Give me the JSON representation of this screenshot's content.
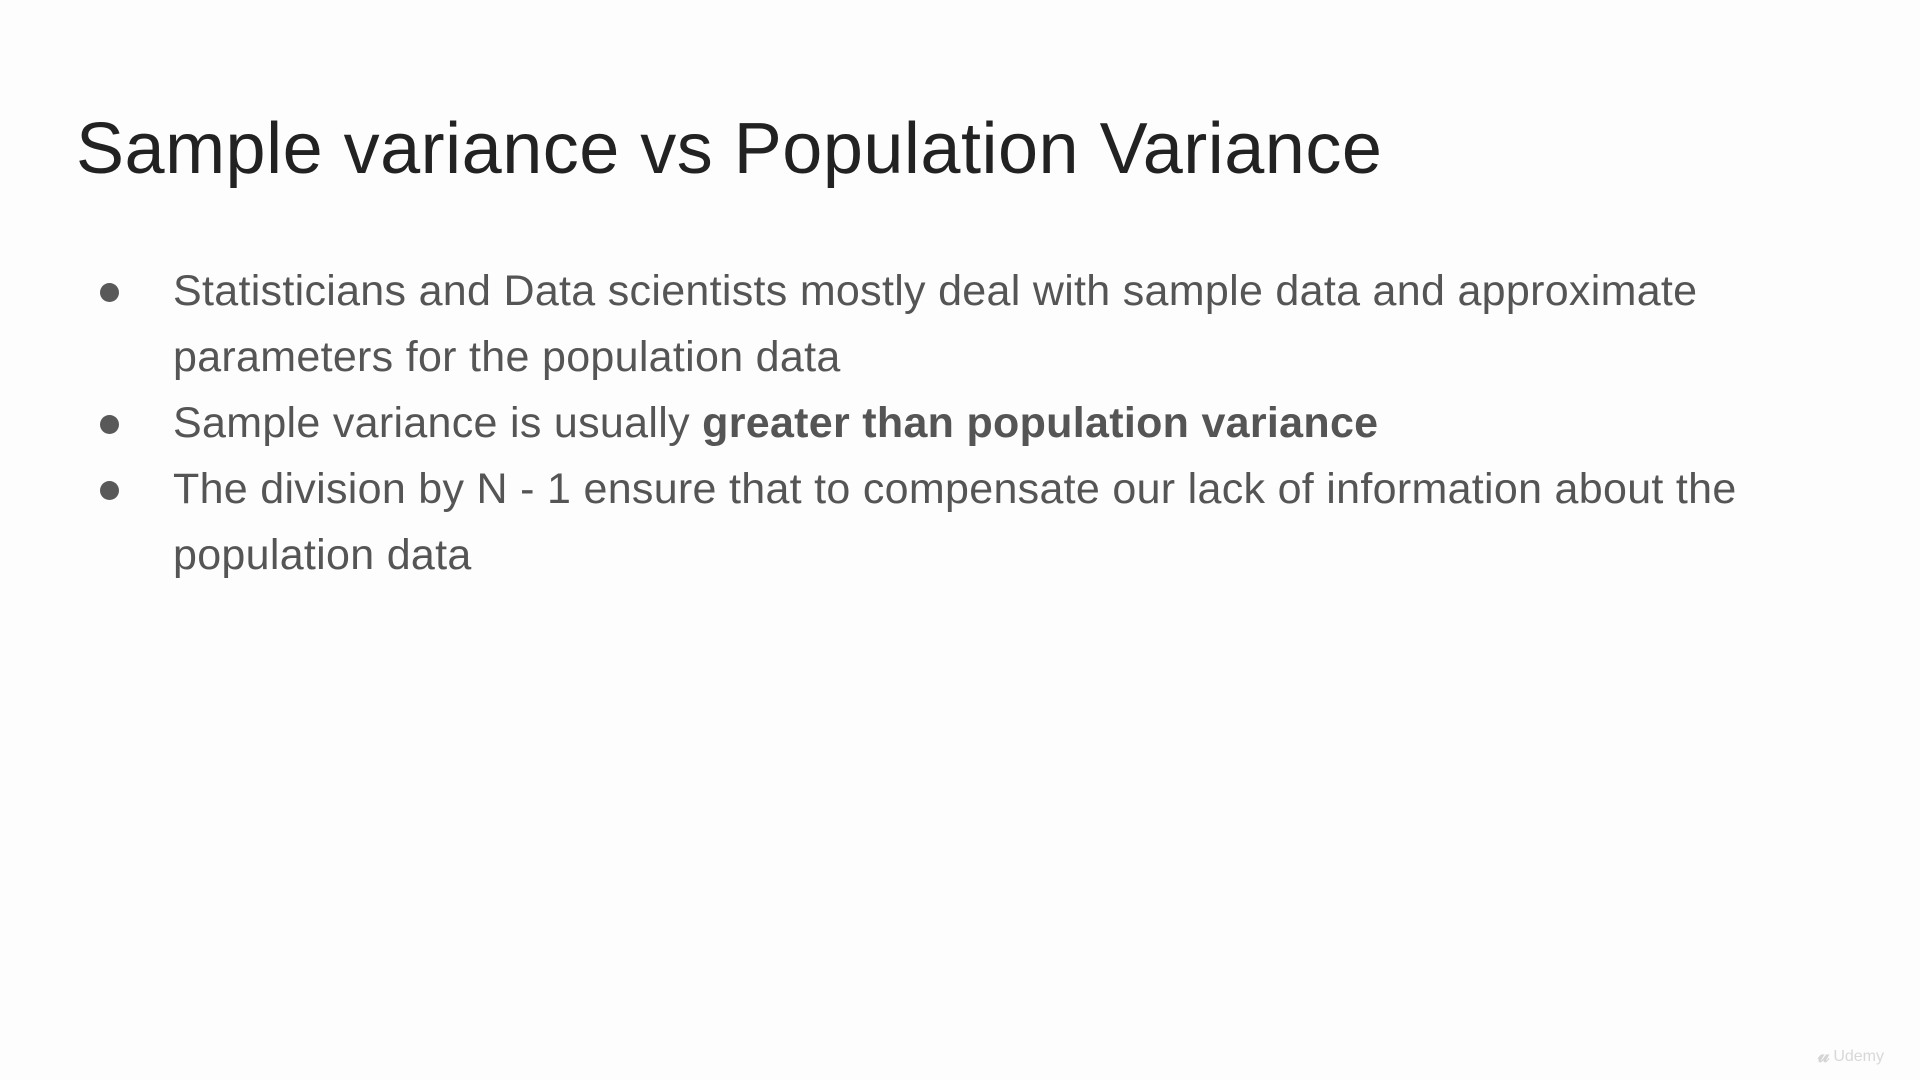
{
  "slide": {
    "title": "Sample variance vs Population Variance",
    "bullets": [
      {
        "text": "Statisticians and Data scientists mostly deal with sample data and approximate parameters for the population data"
      },
      {
        "text": "Sample variance is usually ",
        "bold": "greater than population variance"
      },
      {
        "text": "The division by N - 1 ensure that to compensate our lack of information about the population data"
      }
    ]
  },
  "watermark": {
    "label": "Udemy",
    "icon": "udemy-logo-icon"
  },
  "colors": {
    "title": "#222222",
    "body": "#555555",
    "bullet": "#595959"
  }
}
